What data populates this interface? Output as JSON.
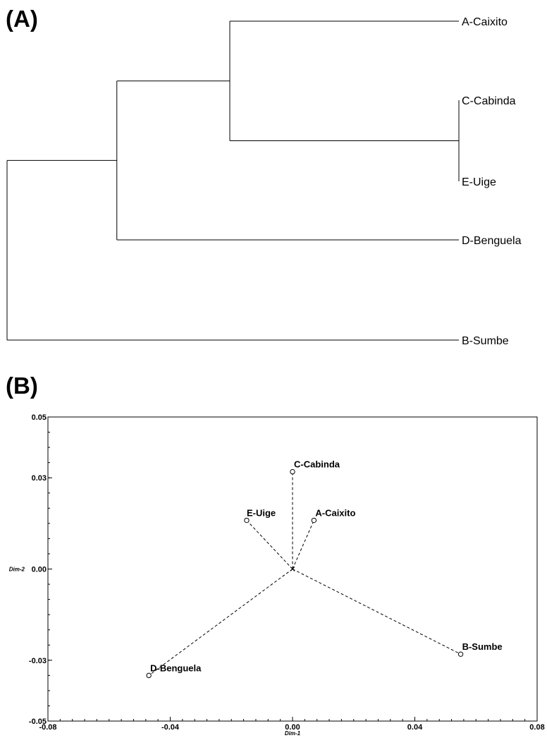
{
  "panels": {
    "a_label": "(A)",
    "b_label": "(B)"
  },
  "chart_data": [
    {
      "type": "dendrogram",
      "leaves": [
        "A-Caixito",
        "C-Cabinda",
        "E-Uige",
        "D-Benguela",
        "B-Sumbe"
      ],
      "merges": [
        {
          "children": [
            "C-Cabinda",
            "E-Uige"
          ],
          "height": 0.0
        },
        {
          "children": [
            "A-Caixito",
            "C-Cabinda+E-Uige"
          ],
          "height": 0.507
        },
        {
          "children": [
            "A-Caixito+C-Cabinda+E-Uige",
            "D-Benguela"
          ],
          "height": 0.757
        },
        {
          "children": [
            "A-Caixito+C-Cabinda+E-Uige+D-Benguela",
            "B-Sumbe"
          ],
          "height": 1.0
        }
      ]
    },
    {
      "type": "scatter",
      "xlabel": "Dim-1",
      "ylabel": "Dim-2",
      "xlim": [
        -0.08,
        0.08
      ],
      "ylim": [
        -0.05,
        0.05
      ],
      "xticks": [
        "-0.08",
        "-0.04",
        "0.00",
        "0.04",
        "0.08"
      ],
      "yticks": [
        "0.05",
        "0.03",
        "0.00",
        "-0.03",
        "-0.05"
      ],
      "ytick_values": [
        0.05,
        0.03,
        0.0,
        -0.03,
        -0.05
      ],
      "centroid": [
        0.0,
        0.0
      ],
      "points": [
        {
          "label": "C-Cabinda",
          "x": 0.0,
          "y": 0.032
        },
        {
          "label": "E-Uige",
          "x": -0.015,
          "y": 0.016
        },
        {
          "label": "A-Caixito",
          "x": 0.007,
          "y": 0.016
        },
        {
          "label": "D-Benguela",
          "x": -0.047,
          "y": -0.035
        },
        {
          "label": "B-Sumbe",
          "x": 0.055,
          "y": -0.028
        }
      ]
    }
  ]
}
